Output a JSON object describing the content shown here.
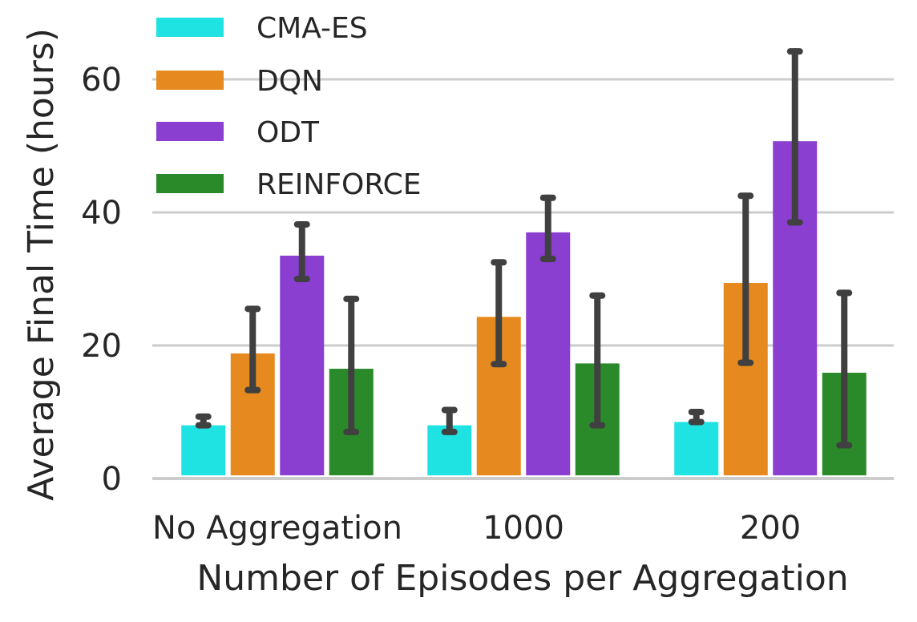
{
  "chart_data": {
    "type": "bar",
    "title": "",
    "xlabel": "Number of Episodes per Aggregation",
    "ylabel": "Average Final Time (hours)",
    "ylim": [
      0,
      70
    ],
    "yticks": [
      0,
      20,
      40,
      60
    ],
    "grid": true,
    "legend_position": "top-left",
    "categories": [
      "No Aggregation",
      "1000",
      "200"
    ],
    "series": [
      {
        "name": "CMA-ES",
        "color": "#1fe3e3",
        "values": [
          8.0,
          8.0,
          8.5
        ],
        "error_low": [
          8.0,
          7.0,
          8.5
        ],
        "error_high": [
          9.3,
          10.3,
          10.0
        ]
      },
      {
        "name": "DQN",
        "color": "#e68a1f",
        "values": [
          18.8,
          24.3,
          29.4
        ],
        "error_low": [
          13.3,
          17.2,
          17.4
        ],
        "error_high": [
          25.5,
          32.5,
          42.5
        ]
      },
      {
        "name": "ODT",
        "color": "#8a3fd1",
        "values": [
          33.5,
          37.0,
          50.7
        ],
        "error_low": [
          30.0,
          33.0,
          38.5
        ],
        "error_high": [
          38.2,
          42.2,
          64.2
        ]
      },
      {
        "name": "REINFORCE",
        "color": "#2a8a2a",
        "values": [
          16.5,
          17.3,
          15.9
        ],
        "error_low": [
          7.0,
          8.0,
          5.0
        ],
        "error_high": [
          27.0,
          27.5,
          27.9
        ]
      }
    ]
  }
}
